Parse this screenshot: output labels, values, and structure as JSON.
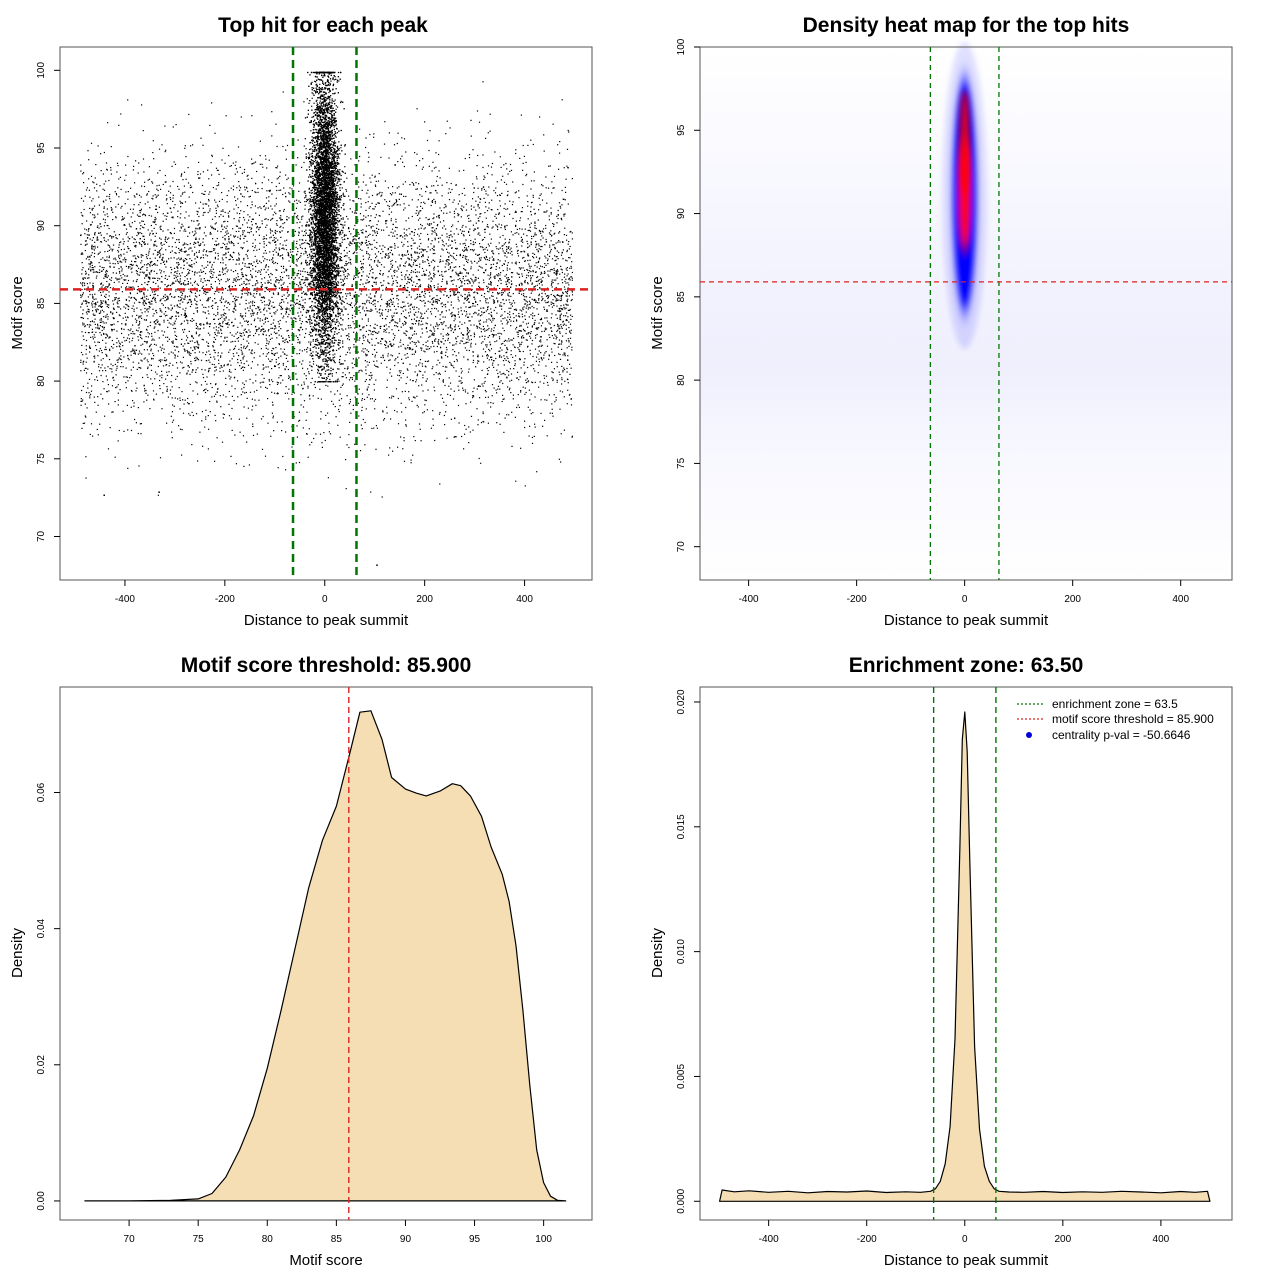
{
  "chart_data": [
    {
      "type": "scatter",
      "title": "Top hit for each peak",
      "xlabel": "Distance to peak summit",
      "ylabel": "Motif score",
      "xlim": [
        -530,
        535
      ],
      "ylim": [
        67.2,
        101.5
      ],
      "x_ticks": [
        -400,
        -200,
        0,
        200,
        400
      ],
      "y_ticks": [
        70,
        75,
        80,
        85,
        90,
        95,
        100
      ],
      "hlines": [
        {
          "y": 85.9,
          "color": "#dd2222",
          "style": "dashed",
          "meaning": "motif score threshold"
        }
      ],
      "vlines": [
        {
          "x": -63.5,
          "color": "#007700",
          "style": "dashed"
        },
        {
          "x": 63.5,
          "color": "#007700",
          "style": "dashed"
        }
      ],
      "point_clouds": [
        {
          "distribution": "uniform",
          "n": 8200,
          "x_range": [
            -490,
            495
          ],
          "y_mean": 86.0,
          "y_sd": 4.2,
          "y_clip": [
            72.5,
            99.3
          ]
        },
        {
          "distribution": "central",
          "n": 9000,
          "x_sd": 14.0,
          "x_clip": [
            -40,
            40
          ],
          "y_mean": 91.0,
          "y_sd": 4.5,
          "y_clip": [
            80.0,
            99.9
          ]
        }
      ],
      "outliers": [
        {
          "x": -443,
          "y": 72.7
        },
        {
          "x": -333,
          "y": 72.9
        },
        {
          "x": 103,
          "y": 68.2
        },
        {
          "x": 492,
          "y": 78.9
        }
      ]
    },
    {
      "type": "heatmap",
      "title": "Density heat map for the top hits",
      "xlabel": "Distance to peak summit",
      "ylabel": "Motif score",
      "xlim": [
        -490,
        495
      ],
      "ylim": [
        68,
        100
      ],
      "x_ticks": [
        -400,
        -200,
        0,
        200,
        400
      ],
      "y_ticks": [
        70,
        75,
        80,
        85,
        90,
        95,
        100
      ],
      "colors": {
        "low": "#ffffff",
        "mid": "#0000ff",
        "high": "#ff0000"
      },
      "hlines": [
        {
          "y": 85.9,
          "color": "#dd2222",
          "style": "dashed"
        }
      ],
      "vlines": [
        {
          "x": -63.5,
          "color": "#007700",
          "style": "dashed"
        },
        {
          "x": 63.5,
          "color": "#007700",
          "style": "dashed"
        }
      ],
      "hotspot": {
        "x": 0,
        "y_peak": 95,
        "y_span": [
          82,
          99
        ]
      }
    },
    {
      "type": "area",
      "title": "Motif score threshold: 85.900",
      "xlabel": "Motif score",
      "ylabel": "Density",
      "xlim": [
        65.0,
        103.5
      ],
      "ylim": [
        -0.0028,
        0.0755
      ],
      "x_ticks": [
        70,
        75,
        80,
        85,
        90,
        95,
        100
      ],
      "y_ticks": [
        0.0,
        0.02,
        0.04,
        0.06
      ],
      "y_tick_labels": [
        "0.00",
        "0.02",
        "0.04",
        "0.06"
      ],
      "fill": "#f5deb3",
      "vlines": [
        {
          "x": 85.9,
          "color": "#dd2222",
          "style": "dashed"
        }
      ],
      "x": [
        66.8,
        70,
        73,
        75,
        76,
        77,
        78,
        79,
        80,
        81,
        82,
        83,
        84,
        85,
        86,
        86.7,
        87.5,
        88.3,
        89,
        90,
        90.8,
        91.5,
        92.5,
        93.4,
        94,
        94.7,
        95.5,
        96.2,
        97,
        97.5,
        98,
        98.5,
        99,
        99.5,
        100,
        100.5,
        101,
        101.6
      ],
      "y": [
        0.0,
        0.0,
        0.0001,
        0.0003,
        0.0011,
        0.0035,
        0.0075,
        0.0125,
        0.0195,
        0.028,
        0.037,
        0.046,
        0.053,
        0.058,
        0.066,
        0.0718,
        0.072,
        0.0678,
        0.0622,
        0.0605,
        0.0599,
        0.0595,
        0.0602,
        0.0613,
        0.061,
        0.0595,
        0.0565,
        0.052,
        0.048,
        0.044,
        0.0375,
        0.028,
        0.017,
        0.0075,
        0.0027,
        0.0007,
        0.0001,
        0.0
      ]
    },
    {
      "type": "area",
      "title": "Enrichment zone: 63.50",
      "xlabel": "Distance to peak summit",
      "ylabel": "Density",
      "xlim": [
        -540,
        545
      ],
      "ylim": [
        -0.00075,
        0.0206
      ],
      "x_ticks": [
        -400,
        -200,
        0,
        200,
        400
      ],
      "y_ticks": [
        0.0,
        0.005,
        0.01,
        0.015,
        0.02
      ],
      "y_tick_labels": [
        "0.000",
        "0.005",
        "0.010",
        "0.015",
        "0.020"
      ],
      "fill": "#f5deb3",
      "vlines": [
        {
          "x": -63.5,
          "color": "#007700",
          "style": "dashed"
        },
        {
          "x": 63.5,
          "color": "#007700",
          "style": "dashed"
        }
      ],
      "x": [
        -500,
        -495,
        -470,
        -440,
        -400,
        -360,
        -320,
        -280,
        -240,
        -200,
        -160,
        -120,
        -90,
        -70,
        -60,
        -50,
        -40,
        -30,
        -20,
        -10,
        -5,
        0,
        5,
        10,
        20,
        30,
        40,
        50,
        60,
        70,
        90,
        120,
        160,
        200,
        240,
        280,
        320,
        360,
        400,
        440,
        470,
        495,
        500
      ],
      "y": [
        0.0,
        0.00045,
        0.00038,
        0.00042,
        0.00036,
        0.0004,
        0.00034,
        0.00039,
        0.00037,
        0.00041,
        0.00035,
        0.00038,
        0.00036,
        0.0004,
        0.0005,
        0.0008,
        0.0015,
        0.003,
        0.0065,
        0.0142,
        0.0185,
        0.0196,
        0.018,
        0.0138,
        0.0062,
        0.0029,
        0.0014,
        0.0008,
        0.0005,
        0.0004,
        0.00037,
        0.00036,
        0.00039,
        0.00035,
        0.00038,
        0.00036,
        0.0004,
        0.00037,
        0.00034,
        0.00039,
        0.00036,
        0.0004,
        0.0
      ]
    }
  ],
  "legend": {
    "placement": "top-right",
    "items": [
      {
        "label": "enrichment zone = 63.5",
        "color": "#007700",
        "marker": "dotted-line"
      },
      {
        "label": "motif score threshold = 85.900",
        "color": "#dd2222",
        "marker": "dotted-line"
      },
      {
        "label": "centrality p-val = -50.6646",
        "color": "#0000dd",
        "marker": "dot"
      }
    ]
  }
}
